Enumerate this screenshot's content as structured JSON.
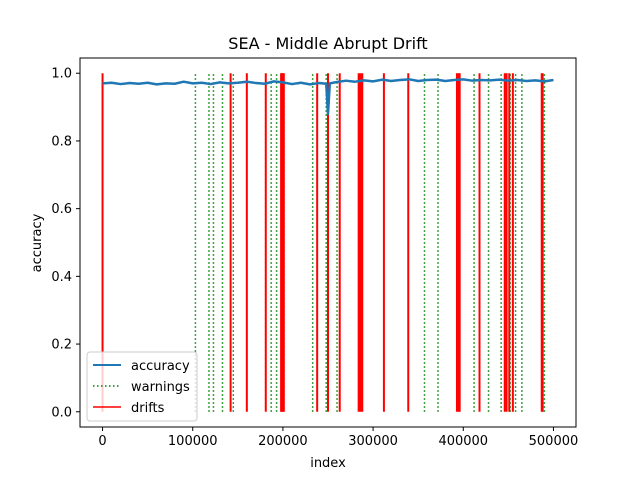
{
  "chart_data": {
    "type": "line",
    "title": "SEA - Middle Abrupt Drift",
    "xlabel": "index",
    "ylabel": "accuracy",
    "xlim": [
      -25000,
      525000
    ],
    "ylim": [
      -0.045,
      1.045
    ],
    "xticks": [
      0,
      100000,
      200000,
      300000,
      400000,
      500000
    ],
    "xtick_labels": [
      "0",
      "100000",
      "200000",
      "300000",
      "400000",
      "500000"
    ],
    "yticks": [
      0.0,
      0.2,
      0.4,
      0.6,
      0.8,
      1.0
    ],
    "ytick_labels": [
      "0.0",
      "0.2",
      "0.4",
      "0.6",
      "0.8",
      "1.0"
    ],
    "grid": false,
    "legend_position": "lower-left",
    "series": [
      {
        "name": "accuracy",
        "style": "solid",
        "color": "#1f77b4",
        "x": [
          0,
          10000,
          20000,
          30000,
          40000,
          50000,
          60000,
          70000,
          80000,
          90000,
          100000,
          110000,
          120000,
          130000,
          140000,
          150000,
          160000,
          170000,
          180000,
          190000,
          200000,
          210000,
          220000,
          230000,
          240000,
          248000,
          250000,
          252000,
          260000,
          270000,
          280000,
          290000,
          300000,
          310000,
          320000,
          330000,
          340000,
          350000,
          360000,
          370000,
          380000,
          390000,
          400000,
          410000,
          420000,
          430000,
          440000,
          450000,
          460000,
          470000,
          480000,
          490000,
          500000
        ],
        "y": [
          0.97,
          0.972,
          0.968,
          0.971,
          0.969,
          0.972,
          0.967,
          0.97,
          0.969,
          0.975,
          0.97,
          0.972,
          0.968,
          0.973,
          0.97,
          0.972,
          0.975,
          0.971,
          0.969,
          0.976,
          0.973,
          0.968,
          0.972,
          0.967,
          0.971,
          0.969,
          0.88,
          0.97,
          0.974,
          0.978,
          0.975,
          0.979,
          0.976,
          0.981,
          0.977,
          0.98,
          0.982,
          0.977,
          0.98,
          0.981,
          0.977,
          0.98,
          0.982,
          0.978,
          0.98,
          0.979,
          0.981,
          0.978,
          0.98,
          0.977,
          0.979,
          0.976,
          0.98
        ]
      },
      {
        "name": "warnings",
        "style": "dotted",
        "color": "#008000",
        "x": [
          103000,
          118000,
          123000,
          133000,
          145000,
          187000,
          193000,
          233000,
          248000,
          260000,
          357000,
          372000,
          412000,
          428000,
          442000,
          452000,
          458000,
          465000,
          490000
        ],
        "y_range": [
          0,
          1
        ]
      },
      {
        "name": "drifts",
        "style": "solid",
        "color": "#ff0000",
        "x": [
          0,
          142000,
          160000,
          181000,
          198000,
          199000,
          200000,
          201000,
          238000,
          250000,
          263000,
          284000,
          286000,
          288000,
          312000,
          339000,
          393000,
          395000,
          396000,
          418000,
          446000,
          448000,
          451000,
          455000,
          487000,
          488000
        ],
        "y_range": [
          0,
          1
        ]
      }
    ]
  },
  "colors": {
    "accuracy": "#1f77b4",
    "warnings": "#008000",
    "drifts": "#ff0000",
    "axes": "#000000",
    "background": "#ffffff",
    "legend_border": "#cccccc"
  }
}
